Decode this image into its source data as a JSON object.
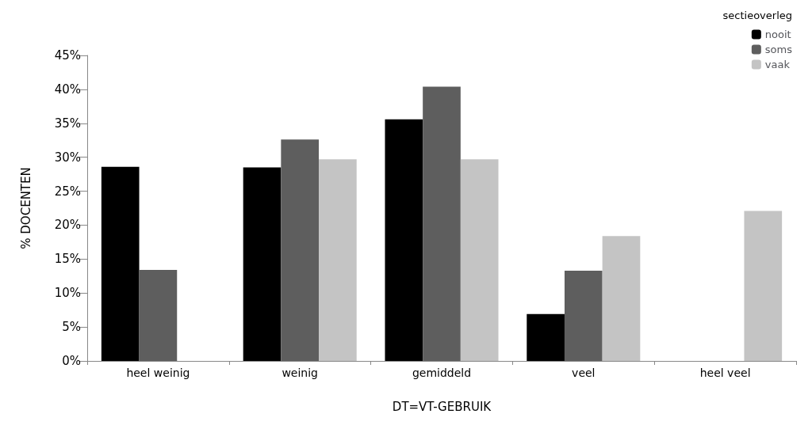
{
  "chart_data": {
    "type": "bar",
    "xlabel": "DT=VT-GEBRUIK",
    "ylabel": "% DOCENTEN",
    "legend_title": "sectieoverleg",
    "categories": [
      "heel weinig",
      "weinig",
      "gemiddeld",
      "veel",
      "heel veel"
    ],
    "series": [
      {
        "name": "nooit",
        "color": "#000000",
        "values": [
          28.6,
          28.5,
          35.6,
          6.9,
          0
        ]
      },
      {
        "name": "soms",
        "color": "#5e5e5e",
        "values": [
          13.4,
          32.6,
          40.4,
          13.3,
          0
        ]
      },
      {
        "name": "vaak",
        "color": "#c4c4c4",
        "values": [
          0,
          29.7,
          29.7,
          18.4,
          22.1
        ]
      }
    ],
    "ylim": [
      0,
      45
    ],
    "yticks": [
      {
        "value": 0,
        "label": "0%"
      },
      {
        "value": 5,
        "label": "5%"
      },
      {
        "value": 10,
        "label": "10%"
      },
      {
        "value": 15,
        "label": "15%"
      },
      {
        "value": 20,
        "label": "20%"
      },
      {
        "value": 25,
        "label": "25%"
      },
      {
        "value": 30,
        "label": "30%"
      },
      {
        "value": 35,
        "label": "35%"
      },
      {
        "value": 40,
        "label": "40%"
      },
      {
        "value": 45,
        "label": "45%"
      }
    ],
    "grid": false,
    "legend": "top right"
  }
}
